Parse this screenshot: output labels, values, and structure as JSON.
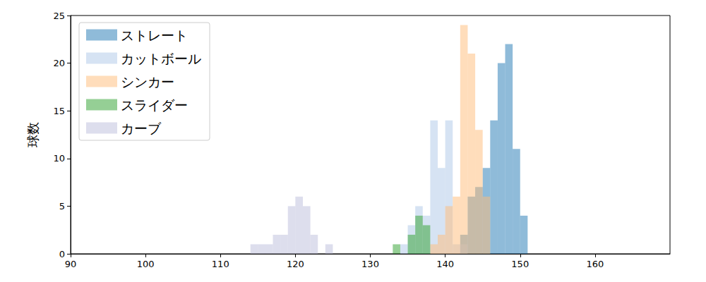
{
  "chart_data": {
    "type": "histogram",
    "ylabel": "球数",
    "xlim": [
      90,
      170
    ],
    "xticks": [
      90,
      100,
      110,
      120,
      130,
      140,
      150,
      160
    ],
    "ylim": [
      0,
      25
    ],
    "yticks": [
      0,
      5,
      10,
      15,
      20,
      25
    ],
    "grid": false,
    "legend": "upper left",
    "series": [
      {
        "name": "ストレート",
        "color": "#1f77b4",
        "bins": [
          142,
          143,
          144,
          145,
          146,
          147,
          148,
          149,
          150,
          151
        ],
        "values": [
          2,
          6,
          7,
          9,
          14,
          20,
          22,
          11,
          4
        ]
      },
      {
        "name": "カットボール",
        "color": "#aec7e8",
        "bins": [
          134,
          135,
          136,
          137,
          138,
          139,
          140,
          141,
          142,
          143
        ],
        "values": [
          1,
          3,
          5,
          4,
          14,
          9,
          14,
          1,
          1
        ]
      },
      {
        "name": "シンカー",
        "color": "#ffbb78",
        "bins": [
          138,
          139,
          140,
          141,
          142,
          143,
          144,
          145,
          146
        ],
        "values": [
          1,
          2,
          5,
          6,
          24,
          21,
          13,
          6
        ]
      },
      {
        "name": "スライダー",
        "color": "#2ca02c",
        "bins": [
          133,
          134,
          135,
          136,
          137,
          138
        ],
        "values": [
          1,
          0,
          2,
          4,
          3
        ]
      },
      {
        "name": "カーブ",
        "color": "#bcbddc",
        "bins": [
          114,
          115,
          116,
          117,
          118,
          119,
          120,
          121,
          122,
          123,
          124,
          125
        ],
        "values": [
          1,
          1,
          1,
          2,
          2,
          5,
          6,
          5,
          2,
          0,
          1
        ]
      }
    ]
  }
}
